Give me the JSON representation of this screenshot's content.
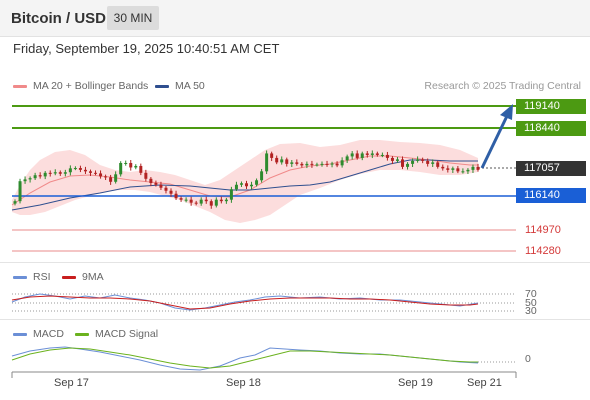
{
  "header": {
    "title": "Bitcoin / USD",
    "interval": "30 MIN"
  },
  "datetime": "Friday, September 19, 2025 10:40:51 AM CET",
  "legend": {
    "ma20": "MA 20 + Bollinger Bands",
    "ma50": "MA 50",
    "credit": "Research © 2025 Trading Central",
    "rsi": "RSI",
    "rsi_ma": "9MA",
    "macd": "MACD",
    "macd_signal": "MACD Signal"
  },
  "colors": {
    "ma20": "#f08a8a",
    "ma50": "#2f4f8f",
    "bollinger": "#fbd5d5",
    "resistance": "#4c9a12",
    "pivot": "#1a5fd6",
    "support": "#e98b8b",
    "up_candle": "#2e8b2e",
    "down_candle": "#b22222",
    "arrow": "#2f5fa6",
    "rsi": "#6b8fd6",
    "rsi_ma": "#c81e1e",
    "macd": "#6b8fd6",
    "macd_signal": "#6bb21e"
  },
  "price_levels": {
    "r2": "119140",
    "r1": "118440",
    "last": "117057",
    "pivot": "116140",
    "s1": "114970",
    "s2": "114280"
  },
  "rsi_levels": {
    "upper": "70",
    "mid": "50",
    "lower": "30"
  },
  "macd_level": "0",
  "x_labels": [
    "Sep 17",
    "Sep 18",
    "Sep 19",
    "Sep 21"
  ],
  "chart_data": {
    "type": "candlestick",
    "series": [
      {
        "name": "Bitcoin / USD",
        "close": [
          115950,
          116620,
          116680,
          116720,
          116820,
          116780,
          116900,
          116880,
          116920,
          116870,
          116920,
          117050,
          117060,
          117000,
          116950,
          116900,
          116880,
          116780,
          116750,
          116600,
          116850,
          117230,
          117230,
          117080,
          117130,
          116900,
          116700,
          116560,
          116500,
          116400,
          116300,
          116200,
          116050,
          116000,
          116000,
          115900,
          115870,
          116000,
          115950,
          115800,
          116000,
          115950,
          116000,
          116350,
          116500,
          116550,
          116450,
          116500,
          116650,
          116950,
          117550,
          117400,
          117250,
          117350,
          117200,
          117250,
          117200,
          117150,
          117200,
          117170,
          117180,
          117200,
          117190,
          117210,
          117150,
          117320,
          117450,
          117550,
          117400,
          117550,
          117500,
          117550,
          117500,
          117500,
          117400,
          117300,
          117350,
          117100,
          117200,
          117300,
          117350,
          117300,
          117200,
          117250,
          117100,
          117050,
          117000,
          117050,
          116950,
          116950,
          117000,
          117100,
          117000
        ]
      }
    ],
    "levels": {
      "resistance": [
        119140,
        118440
      ],
      "pivot": 116140,
      "support": [
        114970,
        114280
      ],
      "last": 117057
    },
    "annotation": "up arrow toward 119140"
  }
}
